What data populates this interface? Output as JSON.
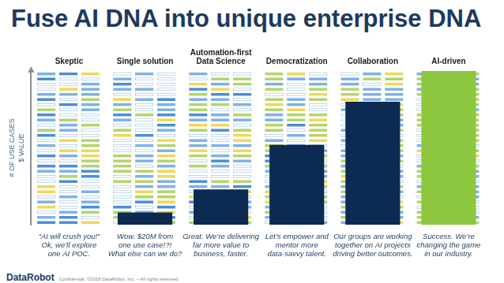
{
  "title": "Fuse AI DNA into unique enterprise DNA",
  "footer": {
    "brand": "DataRobot",
    "notice": "Confidential. ©2018 DataRobot, Inc. – All rights reserved."
  },
  "chart_data": {
    "type": "bar",
    "categories": [
      "Skeptic",
      "Single solution",
      "Automation-first Data Science",
      "Democratization",
      "Collaboration",
      "AI-driven"
    ],
    "values": [
      0,
      8,
      23,
      52,
      80,
      100
    ],
    "colors": [
      "#0d2b52",
      "#0d2b52",
      "#0d2b52",
      "#0d2b52",
      "#0d2b52",
      "#8dc63f"
    ],
    "annotations": [
      [
        "“AI will crush you!”",
        "Ok, we’ll explore",
        "one AI POC."
      ],
      [
        "Wow. $20M from",
        "one use case!?!",
        "What else can we do?"
      ],
      [
        "Great. We’re delivering",
        "far more value to",
        "business, faster."
      ],
      [
        "Let’s empower and",
        "mentor more",
        "data-savvy talent."
      ],
      [
        "Our groups are working",
        "together on AI projects",
        "driving better outcomes."
      ],
      [
        "Success. We’re",
        "changing the game",
        "in our industry."
      ]
    ],
    "ylabel": [
      "# OF USE CASES",
      "$ VALUE"
    ],
    "ylim": [
      0,
      100
    ],
    "grid": false,
    "tick_labels": "x"
  }
}
